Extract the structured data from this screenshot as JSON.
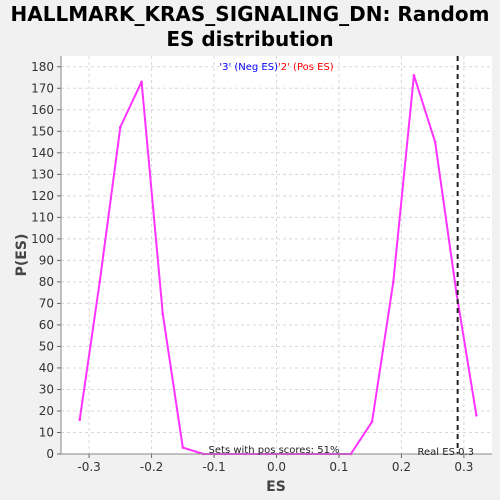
{
  "chart_data": {
    "type": "line",
    "title": "HALLMARK_KRAS_SIGNALING_DN: Random ES distribution",
    "xlabel": "ES",
    "ylabel": "P(ES)",
    "xlim": [
      -0.345,
      0.345
    ],
    "ylim": [
      0,
      185
    ],
    "xticks": [
      -0.3,
      -0.2,
      -0.1,
      0.0,
      0.1,
      0.2,
      0.3
    ],
    "xtick_labels": [
      "-0.3",
      "-0.2",
      "-0.1",
      "0.0",
      "0.1",
      "0.2",
      "0.3"
    ],
    "yticks": [
      0,
      10,
      20,
      30,
      40,
      50,
      60,
      70,
      80,
      90,
      100,
      110,
      120,
      130,
      140,
      150,
      160,
      170,
      180
    ],
    "grid": true,
    "series": [
      {
        "color": "#ff33ff",
        "x": [
          -0.315,
          -0.283,
          -0.25,
          -0.216,
          -0.182,
          -0.15,
          -0.117,
          -0.083,
          -0.05,
          -0.016,
          0.017,
          0.05,
          0.085,
          0.119,
          0.153,
          0.187,
          0.22,
          0.254,
          0.288,
          0.32
        ],
        "y": [
          16,
          80,
          152,
          173,
          65,
          3,
          0,
          0,
          0,
          0,
          0,
          0,
          0,
          0,
          15,
          80,
          176,
          145,
          75,
          18
        ]
      }
    ],
    "real_es": 0.29,
    "legend": {
      "neg_label": "'3' (Neg ES)",
      "neg_color": "#0000ff",
      "pos_label": "'2' (Pos ES)",
      "pos_color": "#ff0000"
    },
    "annotations": {
      "pos_scores": "Sets with pos scores: 51%",
      "real_es": "Real ES 0.3"
    }
  }
}
